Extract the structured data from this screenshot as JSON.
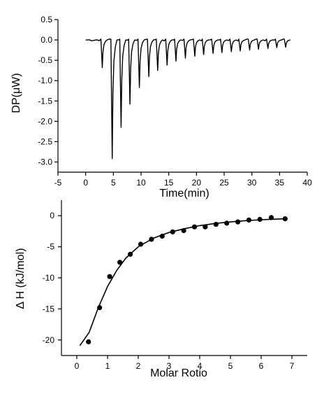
{
  "chart_data": [
    {
      "type": "line",
      "xlabel": "Time(min)",
      "ylabel": "DP(μW)",
      "xlim": [
        -5,
        40
      ],
      "ylim": [
        -3.25,
        0.5
      ],
      "xticks": [
        -5,
        0,
        5,
        10,
        15,
        20,
        25,
        30,
        35,
        40
      ],
      "xtick_labels": [
        "-5",
        "0",
        "5",
        "10",
        "15",
        "20",
        "25",
        "30",
        "35",
        "40"
      ],
      "yticks": [
        0.5,
        0.0,
        -0.5,
        -1.0,
        -1.5,
        -2.0,
        -2.5,
        -3.0
      ],
      "ytick_labels": [
        "0.5",
        "0.0",
        "-0.5",
        "-1.0",
        "-1.5",
        "-2.0",
        "-2.5",
        "-3.0"
      ],
      "grid": false,
      "baseline": {
        "x_start": 0.0,
        "x_end": 36.5,
        "y": 0.0
      },
      "injection_peaks": {
        "x": [
          3.0,
          4.8,
          6.4,
          8.0,
          9.7,
          11.4,
          13.0,
          14.7,
          16.3,
          18.0,
          19.7,
          21.3,
          23.0,
          24.6,
          26.3,
          27.9,
          29.6,
          31.2,
          32.9,
          34.5,
          36.1
        ],
        "y": [
          -0.68,
          -2.92,
          -2.15,
          -1.58,
          -1.17,
          -0.9,
          -0.75,
          -0.62,
          -0.52,
          -0.45,
          -0.4,
          -0.36,
          -0.33,
          -0.31,
          -0.29,
          -0.27,
          -0.25,
          -0.23,
          -0.21,
          -0.19,
          -0.18
        ]
      }
    },
    {
      "type": "scatter",
      "xlabel": "Molar  Rotio",
      "ylabel": "Δ H (kJ/mol)",
      "xlim": [
        -0.5,
        7.5
      ],
      "ylim": [
        -22.5,
        2.5
      ],
      "xticks": [
        0,
        1,
        2,
        3,
        4,
        5,
        6,
        7
      ],
      "xtick_labels": [
        "0",
        "1",
        "2",
        "3",
        "4",
        "5",
        "6",
        "7"
      ],
      "yticks": [
        0,
        -5,
        -10,
        -15,
        -20
      ],
      "ytick_labels": [
        "0",
        "-5",
        "-10",
        "-15",
        "-20"
      ],
      "grid": false,
      "points": {
        "x": [
          0.38,
          0.74,
          1.07,
          1.4,
          1.74,
          2.08,
          2.43,
          2.78,
          3.12,
          3.48,
          3.83,
          4.18,
          4.53,
          4.88,
          5.24,
          5.6,
          5.96,
          6.33,
          6.78
        ],
        "y": [
          -20.3,
          -14.8,
          -9.8,
          -7.5,
          -6.2,
          -4.6,
          -3.8,
          -3.3,
          -2.6,
          -2.4,
          -1.8,
          -1.8,
          -1.4,
          -1.2,
          -1.0,
          -0.7,
          -0.6,
          -0.3,
          -0.5
        ]
      },
      "fit": {
        "x": [
          0.1,
          0.4,
          0.7,
          1.0,
          1.3,
          1.6,
          2.0,
          2.5,
          3.0,
          3.5,
          4.0,
          4.5,
          5.0,
          5.5,
          6.0,
          6.5,
          6.8
        ],
        "y": [
          -20.9,
          -18.8,
          -14.8,
          -11.4,
          -8.8,
          -6.8,
          -5.0,
          -3.6,
          -2.7,
          -2.1,
          -1.6,
          -1.25,
          -1.0,
          -0.8,
          -0.65,
          -0.55,
          -0.5
        ]
      }
    }
  ]
}
